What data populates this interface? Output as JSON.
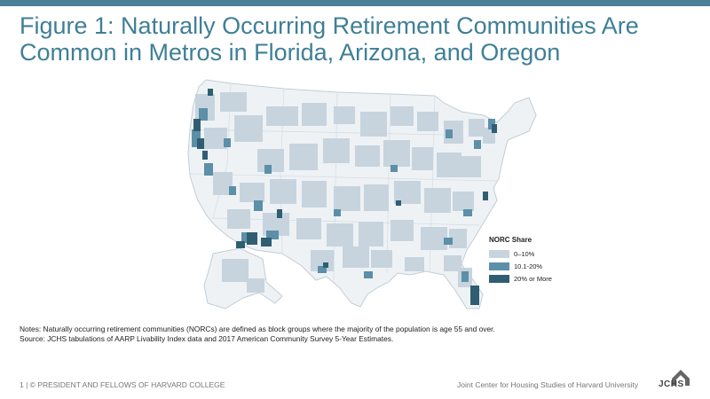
{
  "title": {
    "line1": "Figure 1: Naturally Occurring Retirement Communities Are",
    "line2": "Common in Metros in Florida, Arizona, and Oregon"
  },
  "colors": {
    "accent": "#3f7f96",
    "top_bar": "#4a7f9a",
    "light": "#c7d4de",
    "mid": "#5c8fa8",
    "dark": "#2f5e73"
  },
  "legend": {
    "title": "NORC Share",
    "items": [
      {
        "label": "0–10%",
        "color": "#c7d4de"
      },
      {
        "label": "10.1-20%",
        "color": "#5c8fa8"
      },
      {
        "label": "20% or More",
        "color": "#2f5e73"
      }
    ]
  },
  "notes": {
    "line1": "Notes: Naturally occurring retirement communities (NORCs) are defined as block groups where the majority of the population is age 55 and over.",
    "line2": "Source: JCHS tabulations of AARP Livability Index data and 2017 American Community Survey 5-Year Estimates."
  },
  "footer": {
    "left": "1 | © PRESIDENT AND FELLOWS OF HARVARD COLLEGE",
    "right": "Joint Center for Housing Studies of Harvard University",
    "logo": "JCHS"
  }
}
